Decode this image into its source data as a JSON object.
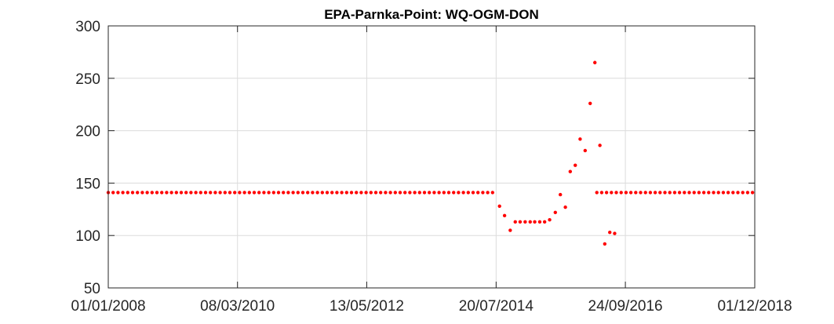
{
  "chart_data": {
    "type": "scatter",
    "title": "EPA-Parnka-Point: WQ-OGM-DON",
    "xlabel": "",
    "ylabel": "",
    "x_axis_type": "date",
    "xlim": [
      "2008-01-01",
      "2018-12-01"
    ],
    "ylim": [
      50,
      300
    ],
    "x_ticks": [
      {
        "date": "2008-01-01",
        "label": "01/01/2008"
      },
      {
        "date": "2010-03-08",
        "label": "08/03/2010"
      },
      {
        "date": "2012-05-13",
        "label": "13/05/2012"
      },
      {
        "date": "2014-07-20",
        "label": "20/07/2014"
      },
      {
        "date": "2016-09-24",
        "label": "24/09/2016"
      },
      {
        "date": "2018-12-01",
        "label": "01/12/2018"
      }
    ],
    "y_ticks": [
      50,
      100,
      150,
      200,
      250,
      300
    ],
    "grid": true,
    "legend": "none",
    "marker_color": "#ff0000",
    "series": [
      {
        "constant_segments": [
          {
            "start": "2008-01-01",
            "end": "2014-07-01",
            "interval_days": 30,
            "value": 141
          },
          {
            "start": "2016-04-01",
            "end": "2018-12-01",
            "interval_days": 30,
            "value": 141
          }
        ],
        "points": [
          {
            "x": "2014-08-10",
            "y": 128
          },
          {
            "x": "2014-09-10",
            "y": 119
          },
          {
            "x": "2014-10-15",
            "y": 105
          },
          {
            "x": "2014-11-15",
            "y": 113
          },
          {
            "x": "2014-12-15",
            "y": 113
          },
          {
            "x": "2015-01-15",
            "y": 113
          },
          {
            "x": "2015-02-15",
            "y": 113
          },
          {
            "x": "2015-03-15",
            "y": 113
          },
          {
            "x": "2015-04-15",
            "y": 113
          },
          {
            "x": "2015-05-15",
            "y": 113
          },
          {
            "x": "2015-06-15",
            "y": 115
          },
          {
            "x": "2015-07-20",
            "y": 122
          },
          {
            "x": "2015-08-20",
            "y": 139
          },
          {
            "x": "2015-09-20",
            "y": 127
          },
          {
            "x": "2015-10-20",
            "y": 161
          },
          {
            "x": "2015-11-20",
            "y": 167
          },
          {
            "x": "2015-12-20",
            "y": 192
          },
          {
            "x": "2016-01-20",
            "y": 181
          },
          {
            "x": "2016-02-20",
            "y": 226
          },
          {
            "x": "2016-03-20",
            "y": 265
          },
          {
            "x": "2016-04-20",
            "y": 186
          },
          {
            "x": "2016-05-20",
            "y": 92
          },
          {
            "x": "2016-06-20",
            "y": 103
          },
          {
            "x": "2016-07-20",
            "y": 102
          }
        ]
      }
    ]
  }
}
